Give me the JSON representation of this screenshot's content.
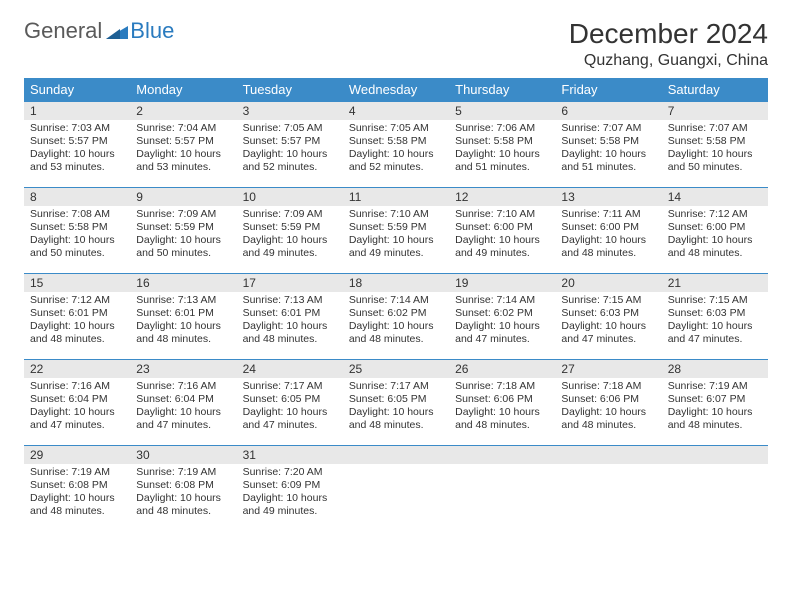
{
  "logo": {
    "word1": "General",
    "word2": "Blue"
  },
  "header": {
    "title": "December 2024",
    "location": "Quzhang, Guangxi, China"
  },
  "colors": {
    "header_bg": "#3b8bc8",
    "header_text": "#ffffff",
    "daynum_bg": "#e8e8e8",
    "border": "#3b8bc8",
    "text": "#333333",
    "logo_gray": "#5a5a5a",
    "logo_blue": "#2a7bbf"
  },
  "weekdays": [
    "Sunday",
    "Monday",
    "Tuesday",
    "Wednesday",
    "Thursday",
    "Friday",
    "Saturday"
  ],
  "weeks": [
    [
      {
        "n": "1",
        "sr": "7:03 AM",
        "ss": "5:57 PM",
        "dl": "10 hours and 53 minutes."
      },
      {
        "n": "2",
        "sr": "7:04 AM",
        "ss": "5:57 PM",
        "dl": "10 hours and 53 minutes."
      },
      {
        "n": "3",
        "sr": "7:05 AM",
        "ss": "5:57 PM",
        "dl": "10 hours and 52 minutes."
      },
      {
        "n": "4",
        "sr": "7:05 AM",
        "ss": "5:58 PM",
        "dl": "10 hours and 52 minutes."
      },
      {
        "n": "5",
        "sr": "7:06 AM",
        "ss": "5:58 PM",
        "dl": "10 hours and 51 minutes."
      },
      {
        "n": "6",
        "sr": "7:07 AM",
        "ss": "5:58 PM",
        "dl": "10 hours and 51 minutes."
      },
      {
        "n": "7",
        "sr": "7:07 AM",
        "ss": "5:58 PM",
        "dl": "10 hours and 50 minutes."
      }
    ],
    [
      {
        "n": "8",
        "sr": "7:08 AM",
        "ss": "5:58 PM",
        "dl": "10 hours and 50 minutes."
      },
      {
        "n": "9",
        "sr": "7:09 AM",
        "ss": "5:59 PM",
        "dl": "10 hours and 50 minutes."
      },
      {
        "n": "10",
        "sr": "7:09 AM",
        "ss": "5:59 PM",
        "dl": "10 hours and 49 minutes."
      },
      {
        "n": "11",
        "sr": "7:10 AM",
        "ss": "5:59 PM",
        "dl": "10 hours and 49 minutes."
      },
      {
        "n": "12",
        "sr": "7:10 AM",
        "ss": "6:00 PM",
        "dl": "10 hours and 49 minutes."
      },
      {
        "n": "13",
        "sr": "7:11 AM",
        "ss": "6:00 PM",
        "dl": "10 hours and 48 minutes."
      },
      {
        "n": "14",
        "sr": "7:12 AM",
        "ss": "6:00 PM",
        "dl": "10 hours and 48 minutes."
      }
    ],
    [
      {
        "n": "15",
        "sr": "7:12 AM",
        "ss": "6:01 PM",
        "dl": "10 hours and 48 minutes."
      },
      {
        "n": "16",
        "sr": "7:13 AM",
        "ss": "6:01 PM",
        "dl": "10 hours and 48 minutes."
      },
      {
        "n": "17",
        "sr": "7:13 AM",
        "ss": "6:01 PM",
        "dl": "10 hours and 48 minutes."
      },
      {
        "n": "18",
        "sr": "7:14 AM",
        "ss": "6:02 PM",
        "dl": "10 hours and 48 minutes."
      },
      {
        "n": "19",
        "sr": "7:14 AM",
        "ss": "6:02 PM",
        "dl": "10 hours and 47 minutes."
      },
      {
        "n": "20",
        "sr": "7:15 AM",
        "ss": "6:03 PM",
        "dl": "10 hours and 47 minutes."
      },
      {
        "n": "21",
        "sr": "7:15 AM",
        "ss": "6:03 PM",
        "dl": "10 hours and 47 minutes."
      }
    ],
    [
      {
        "n": "22",
        "sr": "7:16 AM",
        "ss": "6:04 PM",
        "dl": "10 hours and 47 minutes."
      },
      {
        "n": "23",
        "sr": "7:16 AM",
        "ss": "6:04 PM",
        "dl": "10 hours and 47 minutes."
      },
      {
        "n": "24",
        "sr": "7:17 AM",
        "ss": "6:05 PM",
        "dl": "10 hours and 47 minutes."
      },
      {
        "n": "25",
        "sr": "7:17 AM",
        "ss": "6:05 PM",
        "dl": "10 hours and 48 minutes."
      },
      {
        "n": "26",
        "sr": "7:18 AM",
        "ss": "6:06 PM",
        "dl": "10 hours and 48 minutes."
      },
      {
        "n": "27",
        "sr": "7:18 AM",
        "ss": "6:06 PM",
        "dl": "10 hours and 48 minutes."
      },
      {
        "n": "28",
        "sr": "7:19 AM",
        "ss": "6:07 PM",
        "dl": "10 hours and 48 minutes."
      }
    ],
    [
      {
        "n": "29",
        "sr": "7:19 AM",
        "ss": "6:08 PM",
        "dl": "10 hours and 48 minutes."
      },
      {
        "n": "30",
        "sr": "7:19 AM",
        "ss": "6:08 PM",
        "dl": "10 hours and 48 minutes."
      },
      {
        "n": "31",
        "sr": "7:20 AM",
        "ss": "6:09 PM",
        "dl": "10 hours and 49 minutes."
      },
      null,
      null,
      null,
      null
    ]
  ],
  "labels": {
    "sunrise": "Sunrise: ",
    "sunset": "Sunset: ",
    "daylight": "Daylight: "
  }
}
